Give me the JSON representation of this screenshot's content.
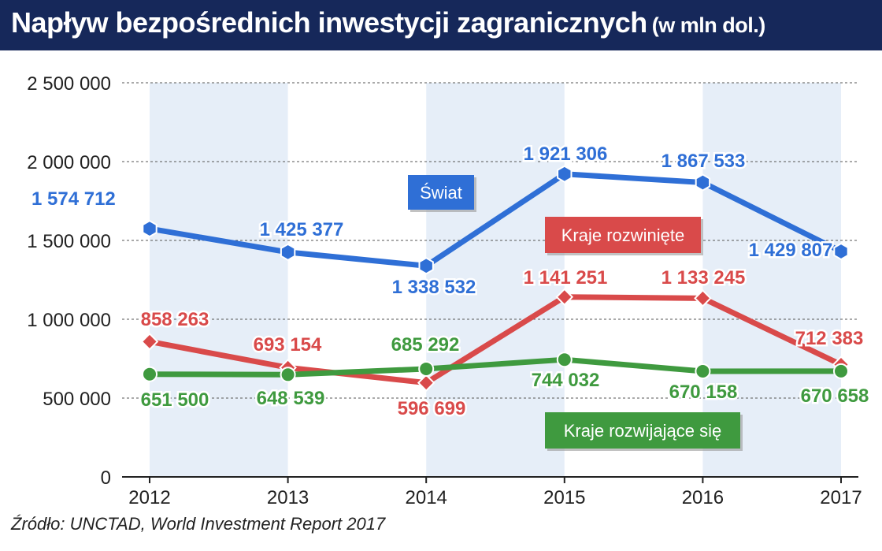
{
  "title": "Napływ bezpośrednich inwestycji zagranicznych",
  "subtitle": "(w mln dol.)",
  "source": "Źródło: UNCTAD, World Investment Report 2017",
  "colors": {
    "header_bg": "#16285a",
    "world": "#2f6fd6",
    "developed": "#d94a4a",
    "developing": "#3f9a3f",
    "band": "#e6eef8"
  },
  "chart_data": {
    "type": "line",
    "categories": [
      "2012",
      "2013",
      "2014",
      "2015",
      "2016",
      "2017"
    ],
    "ylim": [
      0,
      2500000
    ],
    "yticks": [
      0,
      500000,
      1000000,
      1500000,
      2000000,
      2500000
    ],
    "ytick_labels": [
      "0",
      "500 000",
      "1 000 000",
      "1 500 000",
      "2 000 000",
      "2 500 000"
    ],
    "grid": true,
    "series": [
      {
        "key": "world",
        "name": "Świat",
        "values": [
          1574712,
          1425377,
          1338532,
          1921306,
          1867533,
          1429807
        ],
        "labels": [
          "1 574 712",
          "1 425 377",
          "1 338 532",
          "1 921 306",
          "1 867 533",
          "1 429 807"
        ]
      },
      {
        "key": "developed",
        "name": "Kraje rozwinięte",
        "values": [
          858263,
          693154,
          596699,
          1141251,
          1133245,
          712383
        ],
        "labels": [
          "858 263",
          "693 154",
          "596 699",
          "1 141 251",
          "1 133 245",
          "712 383"
        ]
      },
      {
        "key": "developing",
        "name": "Kraje rozwijające się",
        "values": [
          651500,
          648539,
          685292,
          744032,
          670158,
          670658
        ],
        "labels": [
          "651 500",
          "648 539",
          "685 292",
          "744 032",
          "670 158",
          "670 658"
        ]
      }
    ]
  }
}
